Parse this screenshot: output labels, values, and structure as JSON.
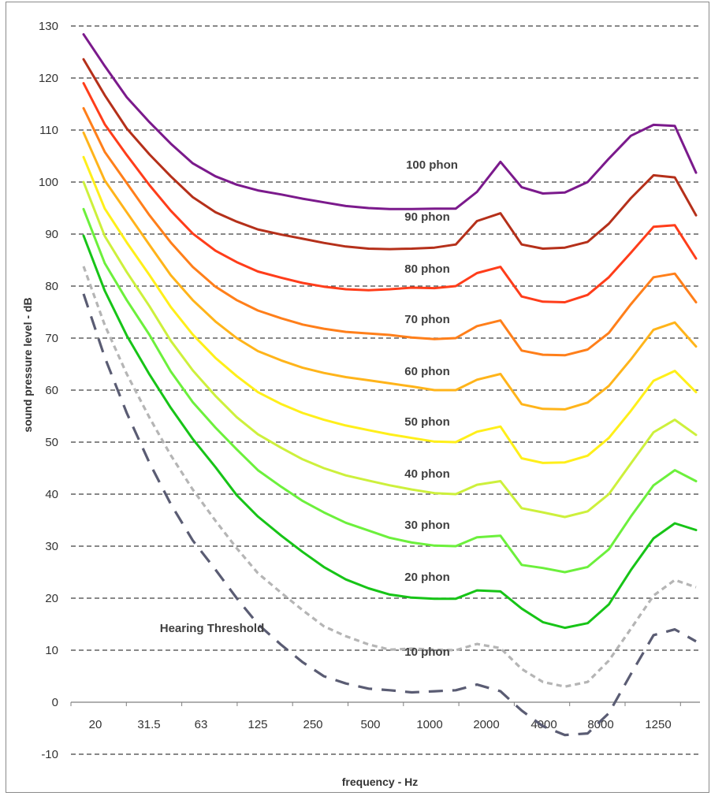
{
  "chart_data": {
    "type": "line",
    "xlabel": "frequency - Hz",
    "ylabel": "sound pressure level - dB",
    "ylim": [
      -10,
      130
    ],
    "yticks": [
      -10,
      0,
      10,
      20,
      30,
      40,
      50,
      60,
      70,
      80,
      90,
      100,
      110,
      120,
      130
    ],
    "grid": "horizontal dashed",
    "xscale": "log",
    "xticks": [
      "20",
      "31.5",
      "63",
      "125",
      "250",
      "500",
      "1000",
      "2000",
      "4000",
      "8000",
      "1250"
    ],
    "x": [
      20,
      25,
      31.5,
      40,
      50,
      63,
      80,
      100,
      125,
      160,
      200,
      250,
      315,
      400,
      500,
      630,
      800,
      1000,
      1250,
      1600,
      2000,
      2500,
      3150,
      4000,
      5000,
      6300,
      8000,
      10000,
      12500
    ],
    "series": [
      {
        "name": "100 phon",
        "color": "#7b1a8c",
        "style": "solid",
        "values": [
          128.4,
          122.3,
          116.3,
          111.5,
          107.4,
          103.6,
          101.1,
          99.5,
          98.4,
          97.6,
          96.8,
          96.1,
          95.4,
          95.0,
          94.8,
          94.8,
          94.9,
          94.9,
          98.1,
          103.9,
          99.0,
          97.8,
          98.0,
          100.0,
          104.5,
          108.9,
          111.0,
          110.8,
          101.8
        ]
      },
      {
        "name": "90 phon",
        "color": "#b5301a",
        "style": "solid",
        "values": [
          123.6,
          116.7,
          110.3,
          105.3,
          101.1,
          97.1,
          94.2,
          92.4,
          90.9,
          89.9,
          89.1,
          88.3,
          87.6,
          87.2,
          87.1,
          87.2,
          87.4,
          88.0,
          92.5,
          94.0,
          88.0,
          87.2,
          87.4,
          88.5,
          92.0,
          96.9,
          101.3,
          100.9,
          93.6
        ]
      },
      {
        "name": "80 phon",
        "color": "#ff3d1a",
        "style": "solid",
        "values": [
          119.0,
          111.1,
          105.2,
          99.4,
          94.5,
          90.1,
          86.8,
          84.6,
          82.8,
          81.6,
          80.6,
          79.9,
          79.4,
          79.2,
          79.4,
          79.7,
          79.6,
          80.0,
          82.5,
          83.7,
          78.0,
          77.0,
          76.9,
          78.3,
          81.7,
          86.4,
          91.4,
          91.7,
          85.3
        ]
      },
      {
        "name": "70 phon",
        "color": "#ff7f1a",
        "style": "solid",
        "values": [
          114.2,
          105.8,
          99.8,
          93.6,
          88.4,
          83.7,
          79.9,
          77.3,
          75.3,
          73.8,
          72.6,
          71.8,
          71.2,
          70.9,
          70.6,
          70.1,
          69.8,
          70.0,
          72.3,
          73.4,
          67.6,
          66.8,
          66.7,
          67.8,
          71.0,
          76.5,
          81.7,
          82.4,
          76.9
        ]
      },
      {
        "name": "60 phon",
        "color": "#ffb41a",
        "style": "solid",
        "values": [
          109.5,
          100.3,
          94.2,
          87.9,
          82.1,
          77.3,
          73.2,
          70.0,
          67.5,
          65.7,
          64.3,
          63.3,
          62.5,
          61.9,
          61.3,
          60.7,
          60.0,
          60.0,
          62.0,
          63.1,
          57.3,
          56.4,
          56.3,
          57.6,
          60.8,
          65.9,
          71.6,
          73.0,
          68.4
        ]
      },
      {
        "name": "50 phon",
        "color": "#ffef1a",
        "style": "solid",
        "values": [
          104.8,
          94.9,
          88.4,
          82.1,
          76.0,
          70.7,
          66.2,
          62.7,
          59.6,
          57.3,
          55.6,
          54.3,
          53.2,
          52.3,
          51.5,
          50.8,
          50.1,
          50.0,
          52.0,
          53.0,
          46.9,
          46.0,
          46.1,
          47.4,
          50.8,
          56.0,
          61.8,
          63.7,
          59.6
        ]
      },
      {
        "name": "40 phon",
        "color": "#cdf03c",
        "style": "solid",
        "values": [
          100.0,
          89.6,
          82.7,
          76.1,
          69.5,
          63.8,
          58.9,
          54.8,
          51.5,
          48.9,
          46.7,
          45.0,
          43.6,
          42.6,
          41.7,
          40.9,
          40.2,
          40.0,
          41.8,
          42.5,
          37.3,
          36.5,
          35.6,
          36.7,
          40.0,
          45.9,
          51.9,
          54.3,
          51.4
        ]
      },
      {
        "name": "30 phon",
        "color": "#6cf03c",
        "style": "solid",
        "values": [
          94.8,
          84.4,
          77.3,
          70.6,
          63.6,
          57.7,
          52.8,
          48.6,
          44.6,
          41.4,
          38.7,
          36.5,
          34.5,
          33.0,
          31.6,
          30.7,
          30.1,
          30.0,
          31.7,
          32.0,
          26.4,
          25.8,
          25.0,
          26.0,
          29.4,
          35.7,
          41.7,
          44.6,
          42.5
        ]
      },
      {
        "name": "20 phon",
        "color": "#17c417",
        "style": "solid",
        "values": [
          89.7,
          79.1,
          70.5,
          63.0,
          56.6,
          50.6,
          45.2,
          39.8,
          35.7,
          32.0,
          28.9,
          26.0,
          23.6,
          21.9,
          20.7,
          20.1,
          19.9,
          19.9,
          21.5,
          21.3,
          18.0,
          15.4,
          14.3,
          15.2,
          18.8,
          25.4,
          31.5,
          34.4,
          33.1
        ]
      },
      {
        "name": "10 phon",
        "color": "#b5b5b5",
        "style": "dotted",
        "values": [
          83.8,
          72.5,
          63.1,
          54.7,
          47.5,
          40.9,
          34.9,
          29.6,
          24.8,
          21.0,
          17.7,
          14.6,
          12.7,
          11.1,
          10.1,
          10.3,
          10.1,
          10.0,
          11.2,
          10.4,
          6.4,
          3.9,
          3.0,
          3.9,
          8.0,
          14.1,
          20.5,
          23.5,
          22.1
        ]
      },
      {
        "name": "Hearing Threshold",
        "color": "#5a5c73",
        "style": "dashed",
        "values": [
          78.5,
          66.3,
          55.6,
          46.0,
          38.1,
          31.1,
          25.5,
          20.0,
          15.0,
          11.0,
          7.7,
          5.0,
          3.6,
          2.6,
          2.3,
          1.9,
          2.1,
          2.3,
          3.4,
          2.1,
          -1.6,
          -4.6,
          -6.3,
          -6.0,
          -2.1,
          5.4,
          12.9,
          14.0,
          11.7
        ]
      }
    ],
    "annotations": [
      "100 phon",
      "90 phon",
      "80 phon",
      "70 phon",
      "60 phon",
      "50 phon",
      "40 phon",
      "30 phon",
      "20 phon",
      "10 phon",
      "Hearing Threshold"
    ]
  }
}
